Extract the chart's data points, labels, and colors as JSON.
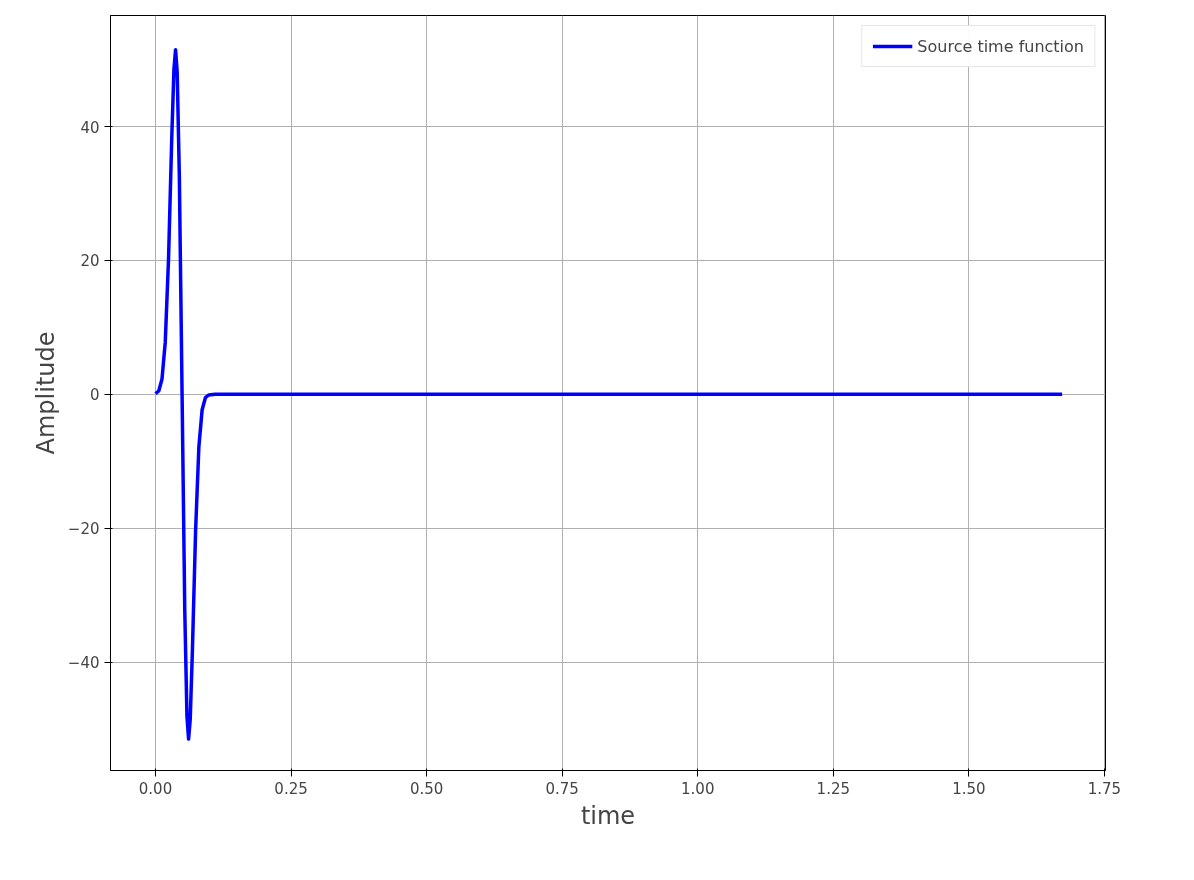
{
  "chart_data": {
    "type": "line",
    "xlabel": "time",
    "ylabel": "Amplitude",
    "xlim": [
      -0.083,
      1.752
    ],
    "ylim": [
      -56.2,
      56.6
    ],
    "xticks": [
      {
        "value": 0,
        "label": "0.00"
      },
      {
        "value": 0.25,
        "label": "0.25"
      },
      {
        "value": 0.5,
        "label": "0.50"
      },
      {
        "value": 0.75,
        "label": "0.75"
      },
      {
        "value": 1,
        "label": "1.00"
      },
      {
        "value": 1.25,
        "label": "1.25"
      },
      {
        "value": 1.5,
        "label": "1.50"
      },
      {
        "value": 1.75,
        "label": "1.75"
      }
    ],
    "yticks": [
      {
        "value": -40,
        "label": "−40"
      },
      {
        "value": -20,
        "label": "−20"
      },
      0,
      20,
      40
    ],
    "grid": true,
    "legend": "top right",
    "line_style": "solid",
    "series": [
      {
        "name": "Source time function",
        "color": "#0000ff",
        "x": [
          0,
          0.006,
          0.012,
          0.018,
          0.024,
          0.03,
          0.034,
          0.037,
          0.04,
          0.044,
          0.049,
          0.054,
          0.058,
          0.061,
          0.064,
          0.068,
          0.074,
          0.08,
          0.086,
          0.092,
          0.098,
          0.11,
          1.672
        ],
        "values": [
          0.1,
          0.5,
          2.3,
          7.8,
          20.2,
          38.4,
          48.6,
          51.5,
          48.1,
          32.4,
          0,
          -32.4,
          -48.1,
          -51.5,
          -48.6,
          -38.4,
          -20.2,
          -7.8,
          -2.3,
          -0.5,
          -0.1,
          0,
          0
        ]
      }
    ]
  }
}
